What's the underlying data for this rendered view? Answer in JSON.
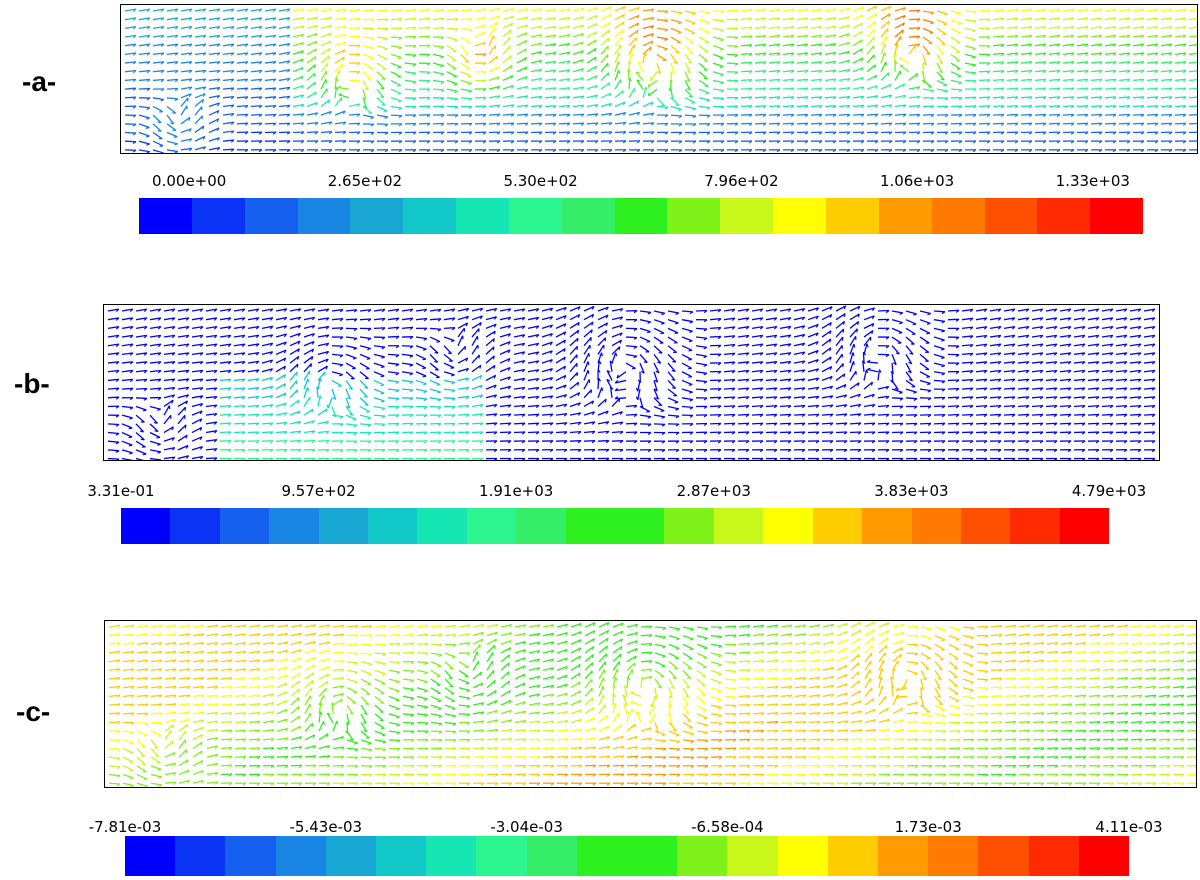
{
  "panels": [
    {
      "label": "-a-",
      "scheme": "velocity",
      "colorbar": [
        "0.00e+00",
        "2.65e+02",
        "5.30e+02",
        "7.96e+02",
        "1.06e+03",
        "1.33e+03"
      ]
    },
    {
      "label": "-b-",
      "scheme": "blue",
      "colorbar": [
        "3.31e-01",
        "9.57e+02",
        "1.91e+03",
        "2.87e+03",
        "3.83e+03",
        "4.79e+03"
      ]
    },
    {
      "label": "-c-",
      "scheme": "yellow",
      "colorbar": [
        "-7.81e-03",
        "-5.43e-03",
        "-3.04e-03",
        "-6.58e-04",
        "1.73e-03",
        "4.11e-03"
      ]
    }
  ],
  "colormap": [
    "#0000ff",
    "#0b33f5",
    "#1560ee",
    "#1a86e4",
    "#18a7d2",
    "#13c8c8",
    "#15e6b4",
    "#2cf58f",
    "#33ee66",
    "#2ef01e",
    "#7ff21a",
    "#c8f81a",
    "#ffff00",
    "#ffcc00",
    "#ff9a00",
    "#ff7a00",
    "#ff5000",
    "#ff2a00",
    "#ff0000"
  ]
}
